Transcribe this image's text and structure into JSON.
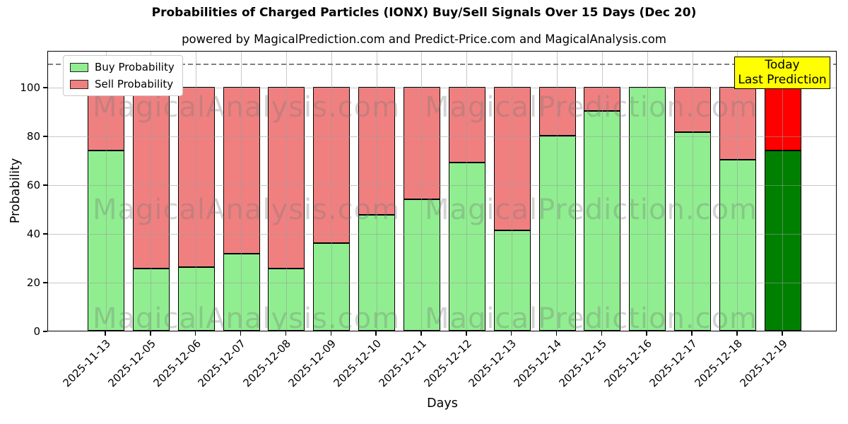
{
  "title": "Probabilities of Charged Particles (IONX) Buy/Sell Signals Over 15 Days (Dec 20)",
  "subtitle": "powered by MagicalPrediction.com and Predict-Price.com and MagicalAnalysis.com",
  "legend": {
    "items": [
      {
        "label": "Buy Probability",
        "color": "#90ee90"
      },
      {
        "label": "Sell Probability",
        "color": "#f08080"
      }
    ]
  },
  "today_box": {
    "line1": "Today",
    "line2": "Last Prediction",
    "bg_color": "#ffff00",
    "border_color": "#000000"
  },
  "watermarks": {
    "left_text": "MagicalAnalysis.com",
    "right_text": "MagicalPrediction.com"
  },
  "chart_data": {
    "type": "bar",
    "stacked": true,
    "title": "Probabilities of Charged Particles (IONX) Buy/Sell Signals Over 15 Days (Dec 20)",
    "xlabel": "Days",
    "ylabel": "Probability",
    "ylim": [
      0,
      115
    ],
    "yticks": [
      0,
      20,
      40,
      60,
      80,
      100
    ],
    "grid": true,
    "legend_position": "upper left",
    "threshold_line": {
      "y": 110,
      "style": "dashed",
      "color": "#808080"
    },
    "categories": [
      "2025-11-13",
      "2025-12-05",
      "2025-12-06",
      "2025-12-07",
      "2025-12-08",
      "2025-12-09",
      "2025-12-10",
      "2025-12-11",
      "2025-12-12",
      "2025-12-13",
      "2025-12-14",
      "2025-12-15",
      "2025-12-16",
      "2025-12-17",
      "2025-12-18",
      "2025-12-19"
    ],
    "series": [
      {
        "name": "Buy Probability",
        "color": "#90ee90",
        "final_bar_color": "#008000",
        "values": [
          74,
          25.5,
          26,
          31.5,
          25.5,
          36,
          47.5,
          54,
          69,
          41,
          80,
          90,
          100,
          81.5,
          70,
          74
        ]
      },
      {
        "name": "Sell Probability",
        "color": "#f08080",
        "final_bar_color": "#ff0000",
        "values": [
          26,
          74.5,
          74,
          68.5,
          74.5,
          64,
          52.5,
          46,
          31,
          59,
          20,
          10,
          0,
          18.5,
          30,
          26
        ]
      }
    ]
  }
}
